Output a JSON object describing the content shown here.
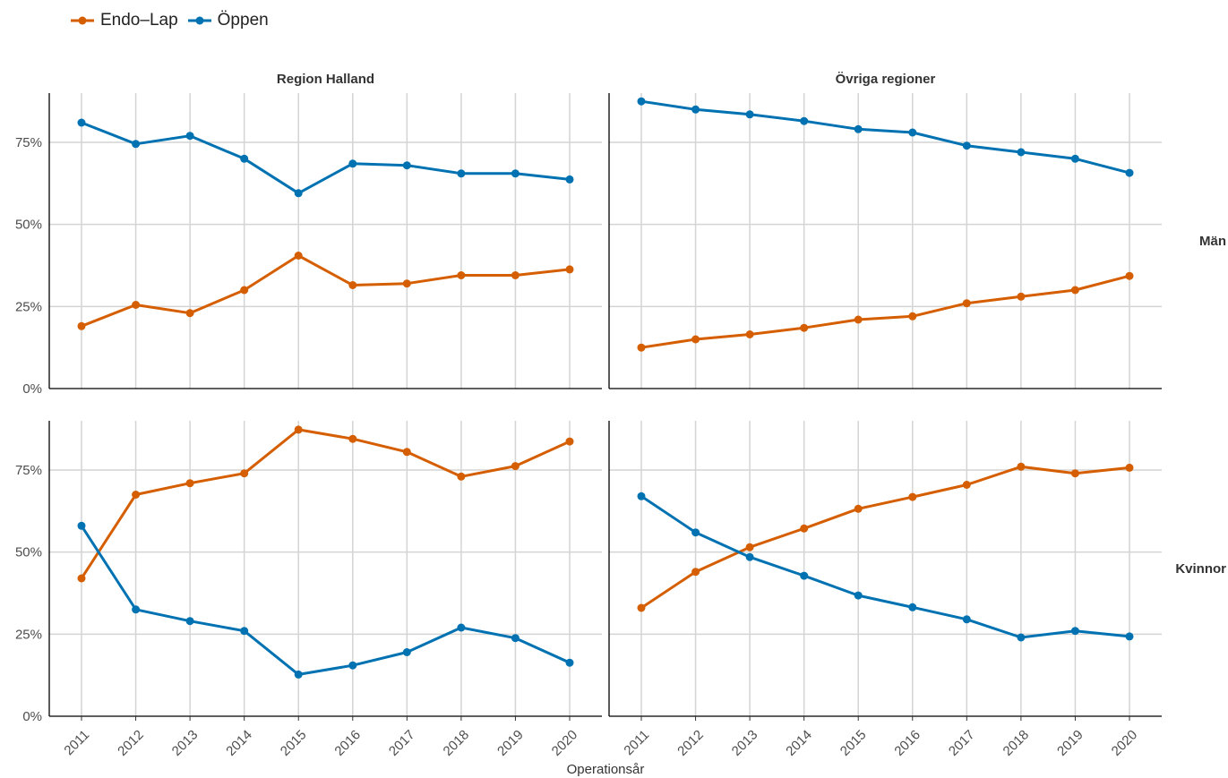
{
  "legend": {
    "items": [
      {
        "label": "Endo–Lap",
        "color": "#D55E00"
      },
      {
        "label": "Öppen",
        "color": "#0072B2"
      }
    ]
  },
  "chart_data": {
    "type": "line",
    "x_label": "Operationsår",
    "x": [
      2011,
      2012,
      2013,
      2014,
      2015,
      2016,
      2017,
      2018,
      2019,
      2020
    ],
    "ylim": [
      0,
      0.9
    ],
    "y_ticks": [
      "0%",
      "25%",
      "50%",
      "75%"
    ],
    "grid": true,
    "legend_position": "top-left",
    "columns": [
      "Region Halland",
      "Övriga regioner"
    ],
    "rows": [
      "Män",
      "Kvinnor"
    ],
    "panels": [
      {
        "column": "Region Halland",
        "row": "Män",
        "series": [
          {
            "name": "Endo–Lap",
            "color": "#D55E00",
            "values": [
              0.19,
              0.255,
              0.23,
              0.3,
              0.405,
              0.315,
              0.32,
              0.345,
              0.345,
              0.363
            ]
          },
          {
            "name": "Öppen",
            "color": "#0072B2",
            "values": [
              0.81,
              0.745,
              0.77,
              0.7,
              0.595,
              0.685,
              0.68,
              0.655,
              0.655,
              0.637
            ]
          }
        ]
      },
      {
        "column": "Övriga regioner",
        "row": "Män",
        "series": [
          {
            "name": "Endo–Lap",
            "color": "#D55E00",
            "values": [
              0.125,
              0.15,
              0.165,
              0.185,
              0.21,
              0.22,
              0.26,
              0.28,
              0.3,
              0.343
            ]
          },
          {
            "name": "Öppen",
            "color": "#0072B2",
            "values": [
              0.875,
              0.85,
              0.835,
              0.815,
              0.79,
              0.78,
              0.74,
              0.72,
              0.7,
              0.657
            ]
          }
        ]
      },
      {
        "column": "Region Halland",
        "row": "Kvinnor",
        "series": [
          {
            "name": "Endo–Lap",
            "color": "#D55E00",
            "values": [
              0.42,
              0.675,
              0.71,
              0.74,
              0.873,
              0.845,
              0.805,
              0.73,
              0.762,
              0.837
            ]
          },
          {
            "name": "Öppen",
            "color": "#0072B2",
            "values": [
              0.58,
              0.325,
              0.29,
              0.26,
              0.127,
              0.155,
              0.195,
              0.27,
              0.238,
              0.163
            ]
          }
        ]
      },
      {
        "column": "Övriga regioner",
        "row": "Kvinnor",
        "series": [
          {
            "name": "Endo–Lap",
            "color": "#D55E00",
            "values": [
              0.33,
              0.44,
              0.515,
              0.572,
              0.632,
              0.668,
              0.705,
              0.76,
              0.74,
              0.757
            ]
          },
          {
            "name": "Öppen",
            "color": "#0072B2",
            "values": [
              0.67,
              0.56,
              0.485,
              0.428,
              0.368,
              0.332,
              0.295,
              0.24,
              0.26,
              0.243
            ]
          }
        ]
      }
    ]
  }
}
